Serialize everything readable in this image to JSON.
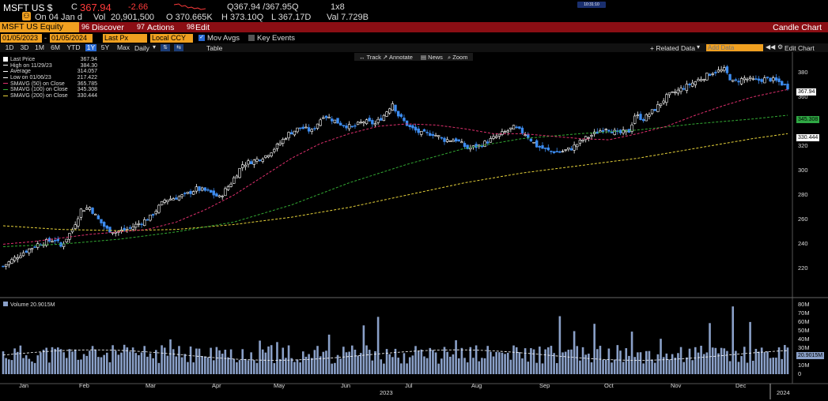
{
  "header": {
    "ticker": "MSFT US $",
    "c_label": "C",
    "last": "367.94",
    "change": "-2.66",
    "quote": "Q367.94 /367.95Q",
    "size": "1x8",
    "on_date": "On 04 Jan d",
    "vol_label": "Vol",
    "volume": "20,901,500",
    "open": "O 370.665K",
    "high": "H 373.10Q",
    "low": "L 367.17D",
    "val": "Val 7.729B",
    "clock": "10:31:10"
  },
  "menubar": {
    "security": "MSFT US Equity",
    "discover": "Discover",
    "actions": "Actions",
    "edit": "Edit",
    "chart_type": "Candle Chart"
  },
  "controls": {
    "start_date": "01/05/2023",
    "end_date": "01/05/2024",
    "field": "Last Px",
    "currency": "Local CCY",
    "mov_avgs": "Mov Avgs",
    "key_events": "Key Events",
    "related_data": "+ Related Data",
    "add_data_placeholder": "Add Data",
    "edit_chart": "Edit Chart",
    "table": "Table"
  },
  "range_buttons": [
    "1D",
    "3D",
    "1M",
    "6M",
    "YTD",
    "1Y",
    "5Y",
    "Max"
  ],
  "selected_range": "1Y",
  "period": "Daily",
  "tools": [
    "Track",
    "Annotate",
    "News",
    "Zoom"
  ],
  "legend": [
    {
      "label": "Last Price",
      "value": "367.94",
      "color": "#ffffff"
    },
    {
      "label": "High on 11/29/23",
      "value": "384.30",
      "color": "#ffffff"
    },
    {
      "label": "Average",
      "value": "314.057",
      "color": "#ffffff"
    },
    {
      "label": "Low on 01/06/23",
      "value": "217.422",
      "color": "#ffffff"
    },
    {
      "label": "SMAVG (50) on Close",
      "value": "365.785",
      "color": "#e0306e"
    },
    {
      "label": "SMAVG (100) on Close",
      "value": "345.308",
      "color": "#33aa33"
    },
    {
      "label": "SMAVG (200) on Close",
      "value": "330.444",
      "color": "#e6d23a"
    }
  ],
  "volume_legend": "Volume 20.9015M",
  "price_tags": {
    "last": "367.94",
    "sma100": "345.308",
    "sma200": "330.444",
    "volume": "20.9015M"
  },
  "colors": {
    "up": "#ffffff",
    "down": "#3d8cf0",
    "sma50": "#e0306e",
    "sma100": "#33aa33",
    "sma200": "#e6d23a",
    "volume": "#8aa0c8",
    "orange": "#f0a020",
    "header_red": "#8b0e14"
  },
  "chart_data": {
    "type": "candlestick",
    "price_axis": {
      "min": 210,
      "max": 390,
      "ticks": [
        220,
        240,
        260,
        280,
        300,
        320,
        340,
        360,
        380
      ]
    },
    "volume_axis": {
      "min": 0,
      "max": 80,
      "unit": "M",
      "ticks": [
        "0",
        "10M",
        "20M",
        "30M",
        "40M",
        "50M",
        "60M",
        "70M",
        "80M"
      ]
    },
    "x_labels": [
      "Jan",
      "Feb",
      "Mar",
      "Apr",
      "May",
      "Jun",
      "Jul",
      "Aug",
      "Sep",
      "Oct",
      "Nov",
      "Dec"
    ],
    "year_labels": [
      "2023",
      "2024"
    ],
    "price_path": [
      [
        0,
        222
      ],
      [
        6,
        232
      ],
      [
        12,
        240
      ],
      [
        18,
        244
      ],
      [
        20,
        238
      ],
      [
        24,
        252
      ],
      [
        27,
        268
      ],
      [
        30,
        270
      ],
      [
        33,
        260
      ],
      [
        36,
        252
      ],
      [
        39,
        250
      ],
      [
        43,
        252
      ],
      [
        48,
        258
      ],
      [
        51,
        262
      ],
      [
        56,
        276
      ],
      [
        60,
        278
      ],
      [
        63,
        280
      ],
      [
        67,
        285
      ],
      [
        71,
        283
      ],
      [
        75,
        278
      ],
      [
        79,
        290
      ],
      [
        83,
        305
      ],
      [
        87,
        308
      ],
      [
        91,
        312
      ],
      [
        95,
        320
      ],
      [
        99,
        330
      ],
      [
        103,
        335
      ],
      [
        107,
        332
      ],
      [
        111,
        345
      ],
      [
        113,
        343
      ],
      [
        117,
        338
      ],
      [
        121,
        335
      ],
      [
        125,
        340
      ],
      [
        129,
        338
      ],
      [
        132,
        345
      ],
      [
        135,
        355
      ],
      [
        137,
        345
      ],
      [
        141,
        335
      ],
      [
        145,
        330
      ],
      [
        149,
        330
      ],
      [
        153,
        325
      ],
      [
        157,
        325
      ],
      [
        161,
        318
      ],
      [
        165,
        320
      ],
      [
        169,
        325
      ],
      [
        173,
        330
      ],
      [
        177,
        335
      ],
      [
        181,
        330
      ],
      [
        185,
        320
      ],
      [
        189,
        316
      ],
      [
        193,
        315
      ],
      [
        197,
        318
      ],
      [
        201,
        325
      ],
      [
        205,
        330
      ],
      [
        209,
        335
      ],
      [
        213,
        330
      ],
      [
        217,
        332
      ],
      [
        219,
        345
      ],
      [
        222,
        342
      ],
      [
        226,
        350
      ],
      [
        230,
        360
      ],
      [
        234,
        365
      ],
      [
        238,
        370
      ],
      [
        242,
        375
      ],
      [
        246,
        380
      ],
      [
        250,
        382
      ],
      [
        253,
        372
      ],
      [
        257,
        375
      ],
      [
        261,
        373
      ],
      [
        265,
        375
      ],
      [
        269,
        372
      ],
      [
        272,
        368
      ]
    ],
    "sma50": [
      [
        0,
        240
      ],
      [
        10,
        242
      ],
      [
        20,
        245
      ],
      [
        30,
        248
      ],
      [
        40,
        250
      ],
      [
        50,
        252
      ],
      [
        60,
        258
      ],
      [
        70,
        268
      ],
      [
        80,
        280
      ],
      [
        90,
        295
      ],
      [
        100,
        310
      ],
      [
        110,
        322
      ],
      [
        120,
        330
      ],
      [
        130,
        336
      ],
      [
        140,
        338
      ],
      [
        150,
        337
      ],
      [
        160,
        334
      ],
      [
        170,
        330
      ],
      [
        180,
        330
      ],
      [
        190,
        328
      ],
      [
        200,
        326
      ],
      [
        210,
        325
      ],
      [
        220,
        330
      ],
      [
        230,
        336
      ],
      [
        240,
        345
      ],
      [
        250,
        353
      ],
      [
        260,
        360
      ],
      [
        272,
        366
      ]
    ],
    "sma100": [
      [
        0,
        238
      ],
      [
        20,
        240
      ],
      [
        40,
        244
      ],
      [
        60,
        250
      ],
      [
        80,
        258
      ],
      [
        100,
        272
      ],
      [
        120,
        290
      ],
      [
        140,
        305
      ],
      [
        160,
        318
      ],
      [
        180,
        326
      ],
      [
        200,
        330
      ],
      [
        220,
        333
      ],
      [
        240,
        338
      ],
      [
        260,
        342
      ],
      [
        272,
        345
      ]
    ],
    "sma200": [
      [
        0,
        255
      ],
      [
        20,
        252
      ],
      [
        40,
        251
      ],
      [
        60,
        252
      ],
      [
        80,
        256
      ],
      [
        100,
        262
      ],
      [
        120,
        270
      ],
      [
        140,
        280
      ],
      [
        160,
        290
      ],
      [
        180,
        298
      ],
      [
        200,
        304
      ],
      [
        220,
        310
      ],
      [
        240,
        318
      ],
      [
        260,
        326
      ],
      [
        272,
        330
      ]
    ],
    "volume_avg_M": 22
  }
}
